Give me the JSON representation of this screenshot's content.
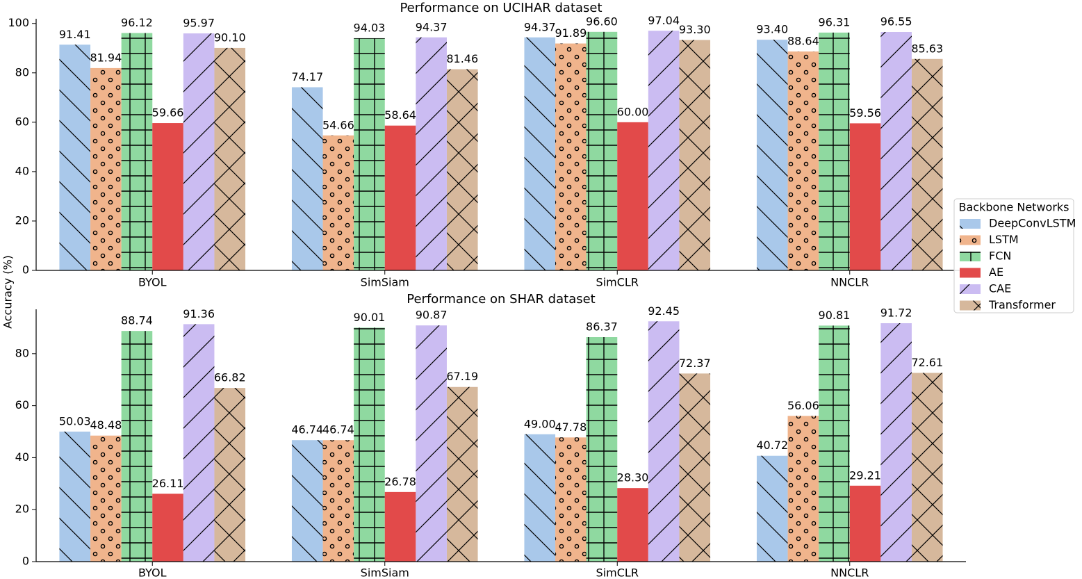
{
  "chart_data": [
    {
      "type": "bar",
      "title": "Performance on UCIHAR dataset",
      "categories": [
        "BYOL",
        "SimSiam",
        "SimCLR",
        "NNCLR"
      ],
      "ylim": [
        0,
        101.9
      ],
      "yticks": [
        0,
        20,
        40,
        60,
        80,
        100
      ],
      "series": [
        {
          "name": "DeepConvLSTM",
          "color": "#a9c8ea",
          "hatch": "backslash",
          "values": [
            91.41,
            74.17,
            94.37,
            93.4
          ],
          "value_labels": [
            "91.41",
            "74.17",
            "94.37",
            "93.40"
          ]
        },
        {
          "name": "LSTM",
          "color": "#f0b48c",
          "hatch": "dots",
          "values": [
            81.94,
            54.66,
            91.89,
            88.64
          ],
          "value_labels": [
            "81.94",
            "54.66",
            "91.89",
            "88.64"
          ]
        },
        {
          "name": "FCN",
          "color": "#8fd9a0",
          "hatch": "plus",
          "values": [
            96.12,
            94.03,
            96.6,
            96.31
          ],
          "value_labels": [
            "96.12",
            "94.03",
            "96.60",
            "96.31"
          ]
        },
        {
          "name": "AE",
          "color": "#e24a4a",
          "hatch": "none",
          "values": [
            59.66,
            58.64,
            60.0,
            59.56
          ],
          "value_labels": [
            "59.66",
            "58.64",
            "60.00",
            "59.56"
          ]
        },
        {
          "name": "CAE",
          "color": "#cbbcf2",
          "hatch": "slash",
          "values": [
            95.97,
            94.37,
            97.04,
            96.55
          ],
          "value_labels": [
            "95.97",
            "94.37",
            "97.04",
            "96.55"
          ]
        },
        {
          "name": "Transformer",
          "color": "#d6b89c",
          "hatch": "cross",
          "values": [
            90.1,
            81.46,
            93.3,
            85.63
          ],
          "value_labels": [
            "90.10",
            "81.46",
            "93.30",
            "85.63"
          ]
        }
      ]
    },
    {
      "type": "bar",
      "title": "Performance on SHAR dataset",
      "categories": [
        "BYOL",
        "SimSiam",
        "SimCLR",
        "NNCLR"
      ],
      "ylim": [
        0,
        97.07
      ],
      "yticks": [
        0,
        20,
        40,
        60,
        80
      ],
      "series": [
        {
          "values": [
            50.03,
            46.74,
            49.0,
            40.72
          ],
          "value_labels": [
            "50.03",
            "46.74",
            "49.00",
            "40.72"
          ]
        },
        {
          "values": [
            48.48,
            46.74,
            47.78,
            56.06
          ],
          "value_labels": [
            "48.48",
            "46.74",
            "47.78",
            "56.06"
          ]
        },
        {
          "values": [
            88.74,
            90.01,
            86.37,
            90.81
          ],
          "value_labels": [
            "88.74",
            "90.01",
            "86.37",
            "90.81"
          ]
        },
        {
          "values": [
            26.11,
            26.78,
            28.3,
            29.21
          ],
          "value_labels": [
            "26.11",
            "26.78",
            "28.30",
            "29.21"
          ]
        },
        {
          "values": [
            91.36,
            90.87,
            92.45,
            91.72
          ],
          "value_labels": [
            "91.36",
            "90.87",
            "92.45",
            "91.72"
          ]
        },
        {
          "values": [
            66.82,
            67.19,
            72.37,
            72.61
          ],
          "value_labels": [
            "66.82",
            "67.19",
            "72.37",
            "72.61"
          ]
        }
      ]
    }
  ],
  "ylabel": "Accuracy (%)",
  "legend": {
    "title": "Backbone Networks",
    "position": "right"
  }
}
